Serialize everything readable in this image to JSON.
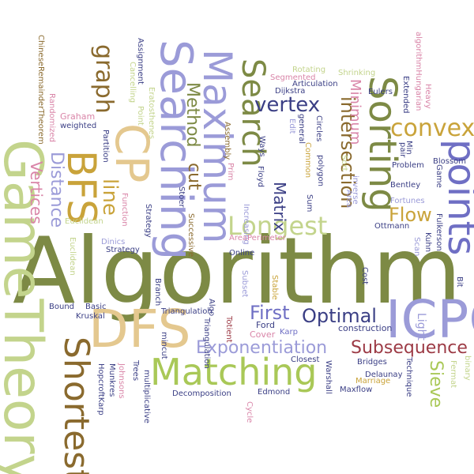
{
  "palette": {
    "olive": "#7d8a45",
    "lavender": "#9b9bd8",
    "tan": "#e4c88f",
    "mustard": "#c9a33a",
    "brown": "#8a6a2e",
    "lime": "#a9c857",
    "navy": "#3b3f85",
    "blue": "#6f6fc4",
    "maroon": "#9c3a45",
    "pink": "#d985a8",
    "sage": "#c3d48c",
    "gray": "#8a8a8a",
    "dark": "#2f3440"
  },
  "words": [
    {
      "name": "algorithm",
      "text": "Algorithm",
      "color": "#7d8a45"
    },
    {
      "name": "gametheory",
      "text": "GameTheory",
      "color": "#c3d48c"
    },
    {
      "name": "dfs",
      "text": "DFS",
      "color": "#e4c88f"
    },
    {
      "name": "icpc",
      "text": "ICPC",
      "color": "#9b9bd8"
    },
    {
      "name": "matching",
      "text": "Matching",
      "color": "#a9c857"
    },
    {
      "name": "searching",
      "text": "Searching",
      "color": "#9b9bd8"
    },
    {
      "name": "maximum",
      "text": "Maximum",
      "color": "#9b9bd8"
    },
    {
      "name": "search",
      "text": "Search",
      "color": "#7d8a45"
    },
    {
      "name": "sorting",
      "text": "Sorting",
      "color": "#7d8a45"
    },
    {
      "name": "points",
      "text": "points",
      "color": "#6f6fc4"
    },
    {
      "name": "bfs",
      "text": "BFS",
      "color": "#c9a33a"
    },
    {
      "name": "cp",
      "text": "CP",
      "color": "#e4c88f"
    },
    {
      "name": "shortest",
      "text": "Shortest",
      "color": "#8a6a2e"
    },
    {
      "name": "graph",
      "text": "graph",
      "color": "#8a6a2e"
    },
    {
      "name": "line",
      "text": "line",
      "color": "#c9a33a"
    },
    {
      "name": "longest",
      "text": "Longest",
      "color": "#c3d48c"
    },
    {
      "name": "exponentiation",
      "text": "Exponentiation",
      "color": "#9b9bd8"
    },
    {
      "name": "subsequence",
      "text": "Subsequence",
      "color": "#9c3a45"
    },
    {
      "name": "optimal",
      "text": "Optimal",
      "color": "#3b3f85"
    },
    {
      "name": "first",
      "text": "First",
      "color": "#6f6fc4"
    },
    {
      "name": "vertex",
      "text": "vertex",
      "color": "#3b3f85"
    },
    {
      "name": "convex",
      "text": "convex",
      "color": "#c9a33a"
    },
    {
      "name": "flow",
      "text": "Flow",
      "color": "#c9a33a"
    },
    {
      "name": "distance",
      "text": "Distance",
      "color": "#9b9bd8"
    },
    {
      "name": "vertices",
      "text": "Vertices",
      "color": "#d985a8"
    },
    {
      "name": "method",
      "text": "Method",
      "color": "#7d8a45"
    },
    {
      "name": "cut",
      "text": "cut",
      "color": "#8a6a2e"
    },
    {
      "name": "matrix",
      "text": "Matrix",
      "color": "#3b3f85"
    },
    {
      "name": "intersection",
      "text": "intersection",
      "color": "#8a6a2e"
    },
    {
      "name": "minimum",
      "text": "Minimum",
      "color": "#d985a8"
    },
    {
      "name": "sieve",
      "text": "Sieve",
      "color": "#a9c857"
    },
    {
      "name": "light",
      "text": "Light",
      "color": "#9b9bd8"
    },
    {
      "name": "chineseremaindertheorem",
      "text": "ChineseRemainderTheorem",
      "color": "#8a6a2e"
    },
    {
      "name": "randomized",
      "text": "Randomized",
      "color": "#d985a8"
    },
    {
      "name": "graham",
      "text": "Graham",
      "color": "#d985a8"
    },
    {
      "name": "partition",
      "text": "Partition",
      "color": "#3b3f85"
    },
    {
      "name": "weighted",
      "text": "weighted",
      "color": "#3b3f85"
    },
    {
      "name": "function",
      "text": "Function",
      "color": "#d985a8"
    },
    {
      "name": "assignment",
      "text": "Assignment",
      "color": "#3b3f85"
    },
    {
      "name": "cancelling",
      "text": "Cancelling",
      "color": "#c3d48c"
    },
    {
      "name": "point",
      "text": "Point",
      "color": "#c3d48c"
    },
    {
      "name": "eratosthenes",
      "text": "Eratosthenes",
      "color": "#c3d48c"
    },
    {
      "name": "polygon",
      "text": "polygon",
      "color": "#3b3f85"
    },
    {
      "name": "euclidean",
      "text": "Euclidean",
      "color": "#c3d48c"
    },
    {
      "name": "topological",
      "text": "Topological",
      "color": "#8a6a2e"
    },
    {
      "name": "dinics",
      "text": "Dinics",
      "color": "#9b9bd8"
    },
    {
      "name": "strategy",
      "text": "Strategy",
      "color": "#3b3f85"
    },
    {
      "name": "stoer",
      "text": "Stoer",
      "color": "#3b3f85"
    },
    {
      "name": "successive",
      "text": "Successive",
      "color": "#8a6a2e"
    },
    {
      "name": "assembly",
      "text": "Assembly",
      "color": "#8a6a2e"
    },
    {
      "name": "prim",
      "text": "Prim",
      "color": "#d985a8"
    },
    {
      "name": "increasing",
      "text": "Increasing",
      "color": "#9b9bd8"
    },
    {
      "name": "ways",
      "text": "Ways",
      "color": "#3b3f85"
    },
    {
      "name": "floyd",
      "text": "Floyd",
      "color": "#3b3f85"
    },
    {
      "name": "calipers",
      "text": "Calipers",
      "color": "#3b3f85"
    },
    {
      "name": "dijkstra",
      "text": "Dijkstra",
      "color": "#3b3f85"
    },
    {
      "name": "rotating",
      "text": "Rotating",
      "color": "#c3d48c"
    },
    {
      "name": "segmented",
      "text": "Segmented",
      "color": "#d985a8"
    },
    {
      "name": "articulation",
      "text": "Articulation",
      "color": "#3b3f85"
    },
    {
      "name": "shrinking",
      "text": "Shrinking",
      "color": "#c3d48c"
    },
    {
      "name": "eulers",
      "text": "Eulers",
      "color": "#3b3f85"
    },
    {
      "name": "circles",
      "text": "Circles",
      "color": "#3b3f85"
    },
    {
      "name": "common",
      "text": "Common",
      "color": "#c9a33a"
    },
    {
      "name": "general",
      "text": "general",
      "color": "#3b3f85"
    },
    {
      "name": "edit",
      "text": "Edit",
      "color": "#9b9bd8"
    },
    {
      "name": "sort",
      "text": "Sort",
      "color": "#c3d48c"
    },
    {
      "name": "area",
      "text": "Area",
      "color": "#9b9bd8"
    },
    {
      "name": "inverse",
      "text": "inverse",
      "color": "#9b9bd8"
    },
    {
      "name": "fortunes",
      "text": "Fortunes",
      "color": "#9b9bd8"
    },
    {
      "name": "bentley",
      "text": "Bentley",
      "color": "#3b3f85"
    },
    {
      "name": "ottmann",
      "text": "Ottmann",
      "color": "#3b3f85"
    },
    {
      "name": "problem",
      "text": "Problem",
      "color": "#3b3f85"
    },
    {
      "name": "pair",
      "text": "pair",
      "color": "#3b3f85"
    },
    {
      "name": "min",
      "text": "Min",
      "color": "#3b3f85"
    },
    {
      "name": "extended",
      "text": "Extended",
      "color": "#3b3f85"
    },
    {
      "name": "algorithmhungarian",
      "text": "algorithmHungarian",
      "color": "#d985a8"
    },
    {
      "name": "heavy",
      "text": "Heavy",
      "color": "#d985a8"
    },
    {
      "name": "blossom",
      "text": "Blossom",
      "color": "#3b3f85"
    },
    {
      "name": "game",
      "text": "Game",
      "color": "#3b3f85"
    },
    {
      "name": "fulkerson",
      "text": "Fulkerson",
      "color": "#3b3f85"
    },
    {
      "name": "kuhn",
      "text": "Kuhn",
      "color": "#3b3f85"
    },
    {
      "name": "scan",
      "text": "Scan",
      "color": "#9b9bd8"
    },
    {
      "name": "bit",
      "text": "Bit",
      "color": "#3b3f85"
    },
    {
      "name": "branch",
      "text": "Branch",
      "color": "#3b3f85"
    },
    {
      "name": "bound",
      "text": "Bound",
      "color": "#3b3f85"
    },
    {
      "name": "basic",
      "text": "Basic",
      "color": "#3b3f85"
    },
    {
      "name": "kruskal",
      "text": "Kruskal",
      "color": "#3b3f85"
    },
    {
      "name": "triangulation",
      "text": "Triangulation",
      "color": "#3b3f85"
    },
    {
      "name": "algo",
      "text": "Algo",
      "color": "#3b3f85"
    },
    {
      "name": "totient",
      "text": "Totient",
      "color": "#9c3a45"
    },
    {
      "name": "subset",
      "text": "Subset",
      "color": "#9b9bd8"
    },
    {
      "name": "areaperimeter",
      "text": "AreaPerimeter",
      "color": "#d985a8"
    },
    {
      "name": "online",
      "text": "Online",
      "color": "#3b3f85"
    },
    {
      "name": "stable",
      "text": "Stable",
      "color": "#c9a33a"
    },
    {
      "name": "sum",
      "text": "Sum",
      "color": "#3b3f85"
    },
    {
      "name": "ford",
      "text": "Ford",
      "color": "#3b3f85"
    },
    {
      "name": "cover",
      "text": "Cover",
      "color": "#d985a8"
    },
    {
      "name": "karp",
      "text": "Karp",
      "color": "#6f6fc4"
    },
    {
      "name": "construction",
      "text": "construction",
      "color": "#3b3f85"
    },
    {
      "name": "depth",
      "text": "Depth",
      "color": "#c9a33a"
    },
    {
      "name": "cost",
      "text": "Cost",
      "color": "#3b3f85"
    },
    {
      "name": "closest",
      "text": "Closest",
      "color": "#3b3f85"
    },
    {
      "name": "bridges",
      "text": "Bridges",
      "color": "#3b3f85"
    },
    {
      "name": "warshall",
      "text": "Warshall",
      "color": "#3b3f85"
    },
    {
      "name": "maxflow",
      "text": "Maxflow",
      "color": "#3b3f85"
    },
    {
      "name": "delaunay",
      "text": "Delaunay",
      "color": "#3b3f85"
    },
    {
      "name": "marriage",
      "text": "Marriage",
      "color": "#c9a33a"
    },
    {
      "name": "technique",
      "text": "Technique",
      "color": "#3b3f85"
    },
    {
      "name": "fermat",
      "text": "Fermat",
      "color": "#c3d48c"
    },
    {
      "name": "binary",
      "text": "binary",
      "color": "#c3d48c"
    },
    {
      "name": "hopcroftkarp",
      "text": "HopcroftKarp",
      "color": "#3b3f85"
    },
    {
      "name": "munkres",
      "text": "Munkres",
      "color": "#3b3f85"
    },
    {
      "name": "johnsons",
      "text": "Johnsons",
      "color": "#d985a8"
    },
    {
      "name": "trees",
      "text": "Trees",
      "color": "#3b3f85"
    },
    {
      "name": "multiplicative",
      "text": "multiplicative",
      "color": "#3b3f85"
    },
    {
      "name": "mincut",
      "text": "mincut",
      "color": "#3b3f85"
    },
    {
      "name": "decomposition",
      "text": "Decomposition",
      "color": "#3b3f85"
    },
    {
      "name": "cycle",
      "text": "Cycle",
      "color": "#d985a8"
    },
    {
      "name": "edmond",
      "text": "Edmond",
      "color": "#3b3f85"
    },
    {
      "name": "lca",
      "text": "LCA",
      "color": "#d985a8"
    },
    {
      "name": "01",
      "text": "01",
      "color": "#9b9bd8"
    },
    {
      "name": "fast",
      "text": "Fast",
      "color": "#9b9bd8"
    },
    {
      "name": "3d",
      "text": "3D",
      "color": "#3b3f85"
    },
    {
      "name": "curious",
      "text": "curious",
      "color": "#d985a8"
    }
  ]
}
